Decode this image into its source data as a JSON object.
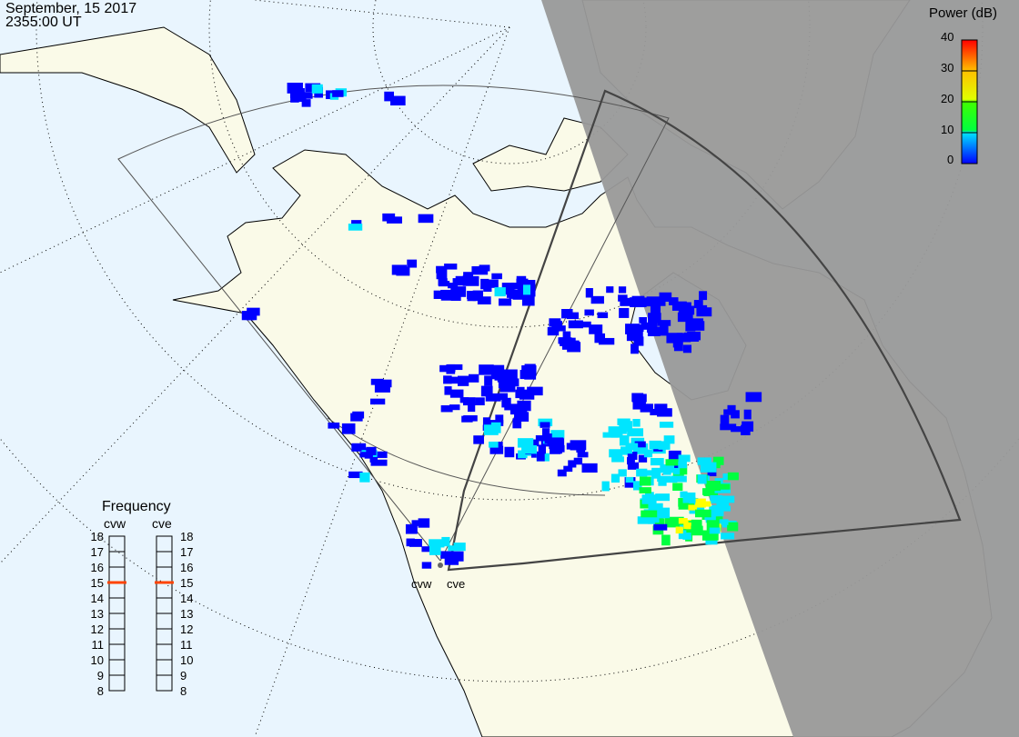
{
  "header": {
    "date": "September, 15 2017",
    "time": "2355:00 UT"
  },
  "colorbar": {
    "title": "Power (dB)",
    "ticks": [
      "40",
      "30",
      "20",
      "10",
      "0"
    ],
    "range": [
      0,
      40
    ],
    "colors": [
      "#0000ff",
      "#00e5ff",
      "#00ff40",
      "#ffff00",
      "#ff0000"
    ]
  },
  "frequency": {
    "title": "Frequency",
    "radars": [
      {
        "label": "cvw",
        "value_mhz": 15
      },
      {
        "label": "cve",
        "value_mhz": 15
      }
    ],
    "ticks": [
      "18",
      "17",
      "16",
      "15",
      "14",
      "13",
      "12",
      "11",
      "10",
      "9",
      "8"
    ],
    "marker_color": "#ff4400"
  },
  "radars": {
    "cvw": "cvw",
    "cve": "cve"
  },
  "colors": {
    "ocean": "#e9f5fe",
    "land": "#fafae8",
    "night": "#999999"
  }
}
